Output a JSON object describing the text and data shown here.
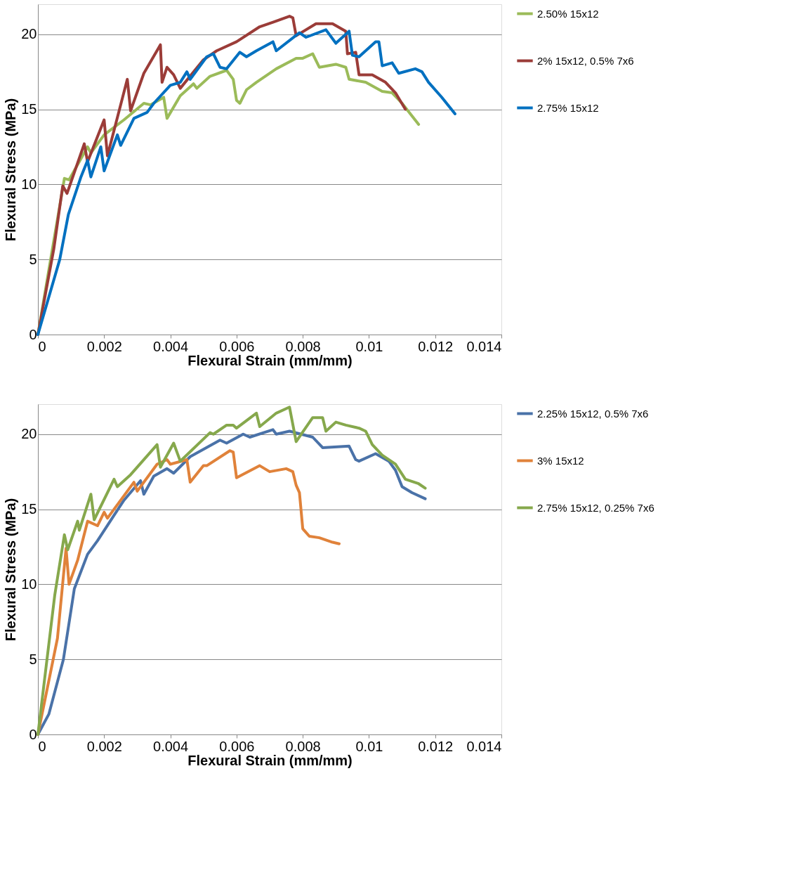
{
  "chart_data": [
    {
      "type": "line",
      "xlabel": "Flexural Strain (mm/mm)",
      "ylabel": "Flexural Stress (MPa)",
      "xlim": [
        0,
        0.014
      ],
      "xticks": [
        0,
        0.002,
        0.004,
        0.006,
        0.008,
        0.01,
        0.012,
        0.014
      ],
      "ylim": [
        0,
        22
      ],
      "yticks": [
        0,
        5,
        10,
        15,
        20
      ],
      "grid": "y",
      "legend": "right",
      "line_style": "solid",
      "marker": "none",
      "series": [
        {
          "name": "2.50% 15x12",
          "color": "#9bbb59",
          "x": [
            0,
            0.00033,
            0.0008,
            0.00094,
            0.0015,
            0.0016,
            0.002,
            0.0026,
            0.0032,
            0.0034,
            0.0038,
            0.0039,
            0.0043,
            0.0047,
            0.0048,
            0.0052,
            0.0057,
            0.0059,
            0.006,
            0.0061,
            0.0063,
            0.0066,
            0.0072,
            0.0078,
            0.008,
            0.0083,
            0.0085,
            0.009,
            0.0093,
            0.0094,
            0.0099,
            0.0104,
            0.0107,
            0.011,
            0.0115
          ],
          "values": [
            0,
            4.3,
            10.4,
            10.3,
            12.5,
            12.1,
            13.3,
            14.3,
            15.4,
            15.3,
            15.8,
            14.4,
            15.9,
            16.7,
            16.4,
            17.2,
            17.6,
            17.0,
            15.6,
            15.4,
            16.3,
            16.8,
            17.7,
            18.4,
            18.4,
            18.7,
            17.8,
            18.0,
            17.8,
            17.0,
            16.8,
            16.2,
            16.1,
            15.4,
            14.0
          ]
        },
        {
          "name": "2% 15x12, 0.5% 7x6",
          "color": "#9b3c38",
          "x": [
            0,
            0.00048,
            0.00075,
            0.00088,
            0.0014,
            0.0015,
            0.002,
            0.0021,
            0.0027,
            0.0028,
            0.0032,
            0.0037,
            0.00375,
            0.0039,
            0.0041,
            0.0043,
            0.005,
            0.0054,
            0.006,
            0.0067,
            0.0071,
            0.0076,
            0.0077,
            0.0078,
            0.0084,
            0.0089,
            0.0093,
            0.00935,
            0.0096,
            0.0097,
            0.0101,
            0.0105,
            0.0108,
            0.0111
          ],
          "values": [
            0,
            5.7,
            9.9,
            9.4,
            12.7,
            11.5,
            14.3,
            11.9,
            17.0,
            14.9,
            17.4,
            19.3,
            16.8,
            17.8,
            17.3,
            16.4,
            18.3,
            18.9,
            19.5,
            20.5,
            20.8,
            21.2,
            21.1,
            19.9,
            20.7,
            20.7,
            20.2,
            18.7,
            18.8,
            17.3,
            17.3,
            16.8,
            16.1,
            15.0
          ]
        },
        {
          "name": "2.75% 15x12",
          "color": "#0070c0",
          "x": [
            0,
            0.00066,
            0.00092,
            0.0013,
            0.0015,
            0.0016,
            0.0019,
            0.002,
            0.0024,
            0.0025,
            0.0029,
            0.0033,
            0.0035,
            0.004,
            0.0043,
            0.0045,
            0.0046,
            0.0051,
            0.0053,
            0.0055,
            0.0057,
            0.0061,
            0.0063,
            0.0066,
            0.0071,
            0.0072,
            0.0079,
            0.0081,
            0.0087,
            0.009,
            0.0094,
            0.0095,
            0.0097,
            0.0102,
            0.0103,
            0.0104,
            0.0107,
            0.0109,
            0.0114,
            0.0116,
            0.0118,
            0.0122,
            0.0126
          ],
          "values": [
            0,
            5.0,
            8.0,
            10.5,
            11.6,
            10.5,
            12.5,
            10.9,
            13.3,
            12.6,
            14.4,
            14.8,
            15.4,
            16.6,
            16.8,
            17.5,
            17.0,
            18.5,
            18.7,
            17.8,
            17.7,
            18.8,
            18.5,
            18.9,
            19.5,
            18.9,
            20.1,
            19.8,
            20.3,
            19.4,
            20.2,
            18.6,
            18.5,
            19.5,
            19.5,
            17.9,
            18.1,
            17.4,
            17.7,
            17.5,
            16.8,
            15.8,
            14.7
          ]
        }
      ]
    },
    {
      "type": "line",
      "xlabel": "Flexural Strain (mm/mm)",
      "ylabel": "Flexural Stress (MPa)",
      "xlim": [
        0,
        0.014
      ],
      "xticks": [
        0,
        0.002,
        0.004,
        0.006,
        0.008,
        0.01,
        0.012,
        0.014
      ],
      "ylim": [
        0,
        22
      ],
      "yticks": [
        0,
        5,
        10,
        15,
        20
      ],
      "grid": "y",
      "legend": "right",
      "line_style": "solid",
      "marker": "none",
      "series": [
        {
          "name": "2.25% 15x12, 0.5% 7x6",
          "color": "#4a72a8",
          "x": [
            0,
            0.00033,
            0.00077,
            0.0011,
            0.0015,
            0.0018,
            0.0023,
            0.0026,
            0.0031,
            0.0032,
            0.0035,
            0.0039,
            0.0041,
            0.0046,
            0.0055,
            0.0057,
            0.0062,
            0.0064,
            0.0071,
            0.0072,
            0.0076,
            0.0083,
            0.0086,
            0.0094,
            0.0096,
            0.0097,
            0.0102,
            0.0106,
            0.0108,
            0.011,
            0.0113,
            0.0117
          ],
          "values": [
            0,
            1.35,
            5.0,
            9.7,
            12.0,
            12.9,
            14.6,
            15.6,
            16.9,
            16.0,
            17.2,
            17.7,
            17.4,
            18.5,
            19.6,
            19.4,
            20.0,
            19.8,
            20.3,
            20.0,
            20.2,
            19.8,
            19.1,
            19.2,
            18.3,
            18.2,
            18.7,
            18.2,
            17.6,
            16.5,
            16.1,
            15.7
          ]
        },
        {
          "name": "3% 15x12",
          "color": "#e0823a",
          "x": [
            0,
            0.00059,
            0.00085,
            0.00094,
            0.0012,
            0.0015,
            0.0018,
            0.002,
            0.0021,
            0.0029,
            0.003,
            0.0036,
            0.0039,
            0.004,
            0.0045,
            0.0046,
            0.005,
            0.0051,
            0.0058,
            0.0059,
            0.006,
            0.0067,
            0.007,
            0.0075,
            0.0077,
            0.0078,
            0.0079,
            0.008,
            0.0082,
            0.0085,
            0.0089,
            0.0091
          ],
          "values": [
            0,
            6.4,
            12.4,
            10.0,
            11.6,
            14.2,
            13.9,
            14.8,
            14.4,
            16.8,
            16.2,
            18.0,
            18.3,
            18.0,
            18.3,
            16.8,
            17.9,
            17.9,
            18.9,
            18.8,
            17.1,
            17.9,
            17.5,
            17.7,
            17.5,
            16.6,
            16.1,
            13.7,
            13.2,
            13.1,
            12.8,
            12.7
          ]
        },
        {
          "name": "2.75% 15x12, 0.25% 7x6",
          "color": "#86a84c",
          "x": [
            0,
            0.00051,
            0.0008,
            0.0009,
            0.0012,
            0.00125,
            0.0016,
            0.0017,
            0.0023,
            0.0024,
            0.0028,
            0.0036,
            0.0037,
            0.0041,
            0.0043,
            0.0052,
            0.0053,
            0.0057,
            0.0059,
            0.006,
            0.0066,
            0.0067,
            0.0072,
            0.0076,
            0.0078,
            0.0083,
            0.0086,
            0.0087,
            0.009,
            0.0093,
            0.0097,
            0.0099,
            0.0101,
            0.0104,
            0.0108,
            0.0111,
            0.0115,
            0.0117
          ],
          "values": [
            0,
            9.3,
            13.3,
            12.3,
            14.2,
            13.6,
            16.0,
            14.3,
            17.0,
            16.5,
            17.3,
            19.3,
            17.8,
            19.4,
            18.2,
            20.1,
            20.0,
            20.6,
            20.6,
            20.4,
            21.4,
            20.5,
            21.4,
            21.8,
            19.5,
            21.1,
            21.1,
            20.2,
            20.8,
            20.6,
            20.4,
            20.2,
            19.3,
            18.6,
            18.0,
            17.0,
            16.7,
            16.4
          ]
        }
      ]
    }
  ]
}
